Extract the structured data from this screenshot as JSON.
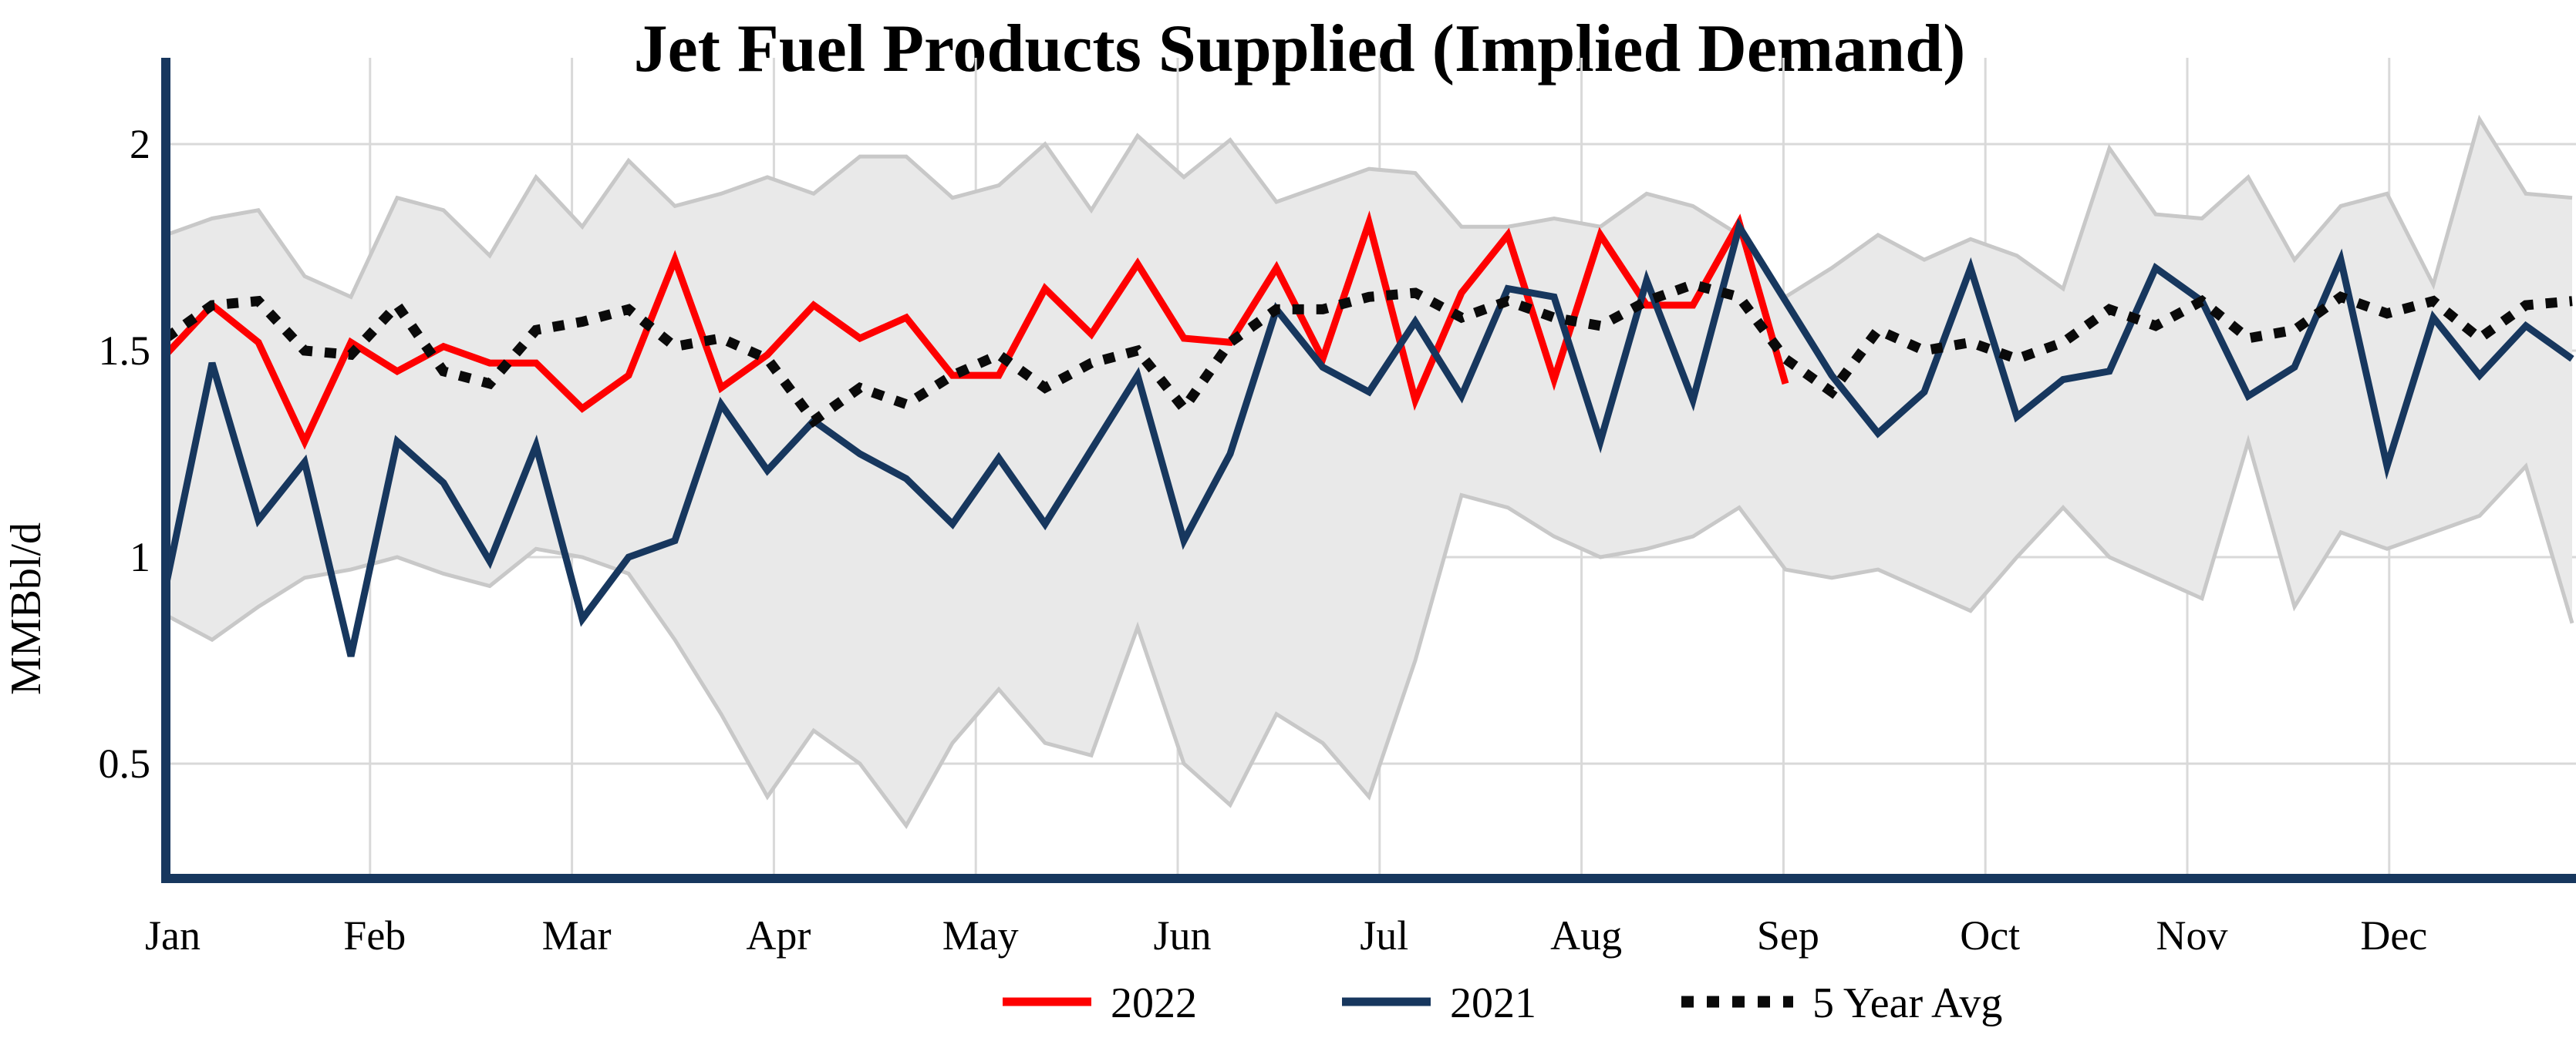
{
  "title": "Jet Fuel Products Supplied (Implied Demand)",
  "y_axis": {
    "label": "MMBbl/d",
    "ticks": [
      "2",
      "1.5",
      "1",
      "0.5"
    ],
    "tick_values": [
      2,
      1.5,
      1,
      0.5
    ]
  },
  "x_axis": {
    "months": [
      "Jan",
      "Feb",
      "Mar",
      "Apr",
      "May",
      "Jun",
      "Jul",
      "Aug",
      "Sep",
      "Oct",
      "Nov",
      "Dec"
    ]
  },
  "legend": {
    "items": [
      {
        "label": "2022",
        "color": "#fe0000",
        "style": "solid"
      },
      {
        "label": "2021",
        "color": "#17375e",
        "style": "solid"
      },
      {
        "label": "5 Year Avg",
        "color": "#0a0a0a",
        "style": "dotted"
      }
    ]
  },
  "colors": {
    "axis": "#17375e",
    "gridline": "#d9d9d9",
    "band_fill": "#e9e9e9",
    "band_edge": "#c8c8c8",
    "series_2022": "#fe0000",
    "series_2021": "#17375e",
    "series_avg": "#0a0a0a"
  },
  "chart_data": {
    "type": "line",
    "title": "Jet Fuel Products Supplied (Implied Demand)",
    "xlabel": "",
    "ylabel": "MMBbl/d",
    "ylim": [
      0.22,
      2.09
    ],
    "x_unit": "weekly points, Jan through Dec",
    "grid": true,
    "legend_position": "bottom",
    "band": {
      "name": "5-year range (shaded)",
      "upper": [
        1.78,
        1.82,
        1.84,
        1.68,
        1.63,
        1.87,
        1.84,
        1.73,
        1.92,
        1.8,
        1.96,
        1.85,
        1.88,
        1.92,
        1.88,
        1.97,
        1.97,
        1.87,
        1.9,
        2.0,
        1.84,
        2.02,
        1.92,
        2.01,
        1.86,
        1.9,
        1.94,
        1.93,
        1.8,
        1.8,
        1.82,
        1.8,
        1.88,
        1.85,
        1.78,
        1.63,
        1.7,
        1.78,
        1.72,
        1.77,
        1.73,
        1.65,
        1.99,
        1.83,
        1.82,
        1.92,
        1.72,
        1.85,
        1.88,
        1.66,
        2.06,
        1.88,
        1.87
      ],
      "lower": [
        0.86,
        0.8,
        0.88,
        0.95,
        0.97,
        1.0,
        0.96,
        0.93,
        1.02,
        1.0,
        0.96,
        0.8,
        0.62,
        0.42,
        0.58,
        0.5,
        0.35,
        0.55,
        0.68,
        0.55,
        0.52,
        0.83,
        0.5,
        0.4,
        0.62,
        0.55,
        0.42,
        0.75,
        1.15,
        1.12,
        1.05,
        1.0,
        1.02,
        1.05,
        1.12,
        0.97,
        0.95,
        0.97,
        0.92,
        0.87,
        1.0,
        1.12,
        1.0,
        0.95,
        0.9,
        1.28,
        0.88,
        1.06,
        1.02,
        1.06,
        1.1,
        1.22,
        0.84
      ]
    },
    "series": [
      {
        "name": "2022",
        "color": "#fe0000",
        "dashed": false,
        "values": [
          1.49,
          1.61,
          1.52,
          1.28,
          1.52,
          1.45,
          1.51,
          1.47,
          1.47,
          1.36,
          1.44,
          1.72,
          1.41,
          1.49,
          1.61,
          1.53,
          1.58,
          1.44,
          1.44,
          1.65,
          1.54,
          1.71,
          1.53,
          1.52,
          1.7,
          1.48,
          1.81,
          1.38,
          1.64,
          1.78,
          1.43,
          1.78,
          1.61,
          1.61,
          1.81,
          1.42
        ]
      },
      {
        "name": "2021",
        "color": "#17375e",
        "dashed": false,
        "values": [
          0.93,
          1.47,
          1.09,
          1.23,
          0.76,
          1.28,
          1.18,
          0.99,
          1.27,
          0.85,
          1.0,
          1.04,
          1.37,
          1.21,
          1.33,
          1.25,
          1.19,
          1.08,
          1.24,
          1.08,
          1.26,
          1.44,
          1.04,
          1.25,
          1.6,
          1.46,
          1.4,
          1.57,
          1.39,
          1.65,
          1.63,
          1.28,
          1.67,
          1.38,
          1.8,
          1.62,
          1.44,
          1.3,
          1.4,
          1.7,
          1.34,
          1.43,
          1.45,
          1.7,
          1.62,
          1.39,
          1.46,
          1.72,
          1.22,
          1.58,
          1.44,
          1.56,
          1.48
        ]
      },
      {
        "name": "5 Year Avg",
        "color": "#0a0a0a",
        "dashed": true,
        "values": [
          1.53,
          1.61,
          1.62,
          1.5,
          1.49,
          1.61,
          1.45,
          1.42,
          1.55,
          1.57,
          1.6,
          1.51,
          1.53,
          1.48,
          1.33,
          1.41,
          1.37,
          1.44,
          1.49,
          1.41,
          1.47,
          1.5,
          1.36,
          1.52,
          1.6,
          1.6,
          1.63,
          1.64,
          1.58,
          1.62,
          1.58,
          1.56,
          1.62,
          1.66,
          1.63,
          1.48,
          1.4,
          1.55,
          1.5,
          1.52,
          1.48,
          1.52,
          1.6,
          1.56,
          1.62,
          1.53,
          1.55,
          1.63,
          1.59,
          1.62,
          1.53,
          1.61,
          1.62
        ]
      }
    ]
  }
}
